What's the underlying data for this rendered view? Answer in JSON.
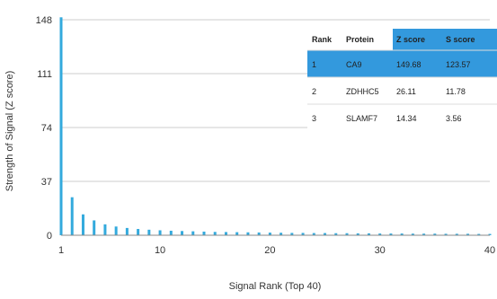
{
  "chart_data": {
    "type": "bar",
    "ylabel": "Strength of Signal (Z score)",
    "xlabel": "Signal Rank (Top 40)",
    "ylim": [
      0,
      148
    ],
    "xlim": [
      1,
      40
    ],
    "y_ticks": [
      "0",
      "37",
      "74",
      "111",
      "148"
    ],
    "x_ticks": [
      "1",
      "10",
      "20",
      "30",
      "40"
    ],
    "grid": "horizontal",
    "colors": {
      "bar": "#33aadd",
      "table_highlight": "#3399dd"
    },
    "x": [
      1,
      2,
      3,
      4,
      5,
      6,
      7,
      8,
      9,
      10,
      11,
      12,
      13,
      14,
      15,
      16,
      17,
      18,
      19,
      20,
      21,
      22,
      23,
      24,
      25,
      26,
      27,
      28,
      29,
      30,
      31,
      32,
      33,
      34,
      35,
      36,
      37,
      38,
      39,
      40
    ],
    "values": [
      149.68,
      26.11,
      14.34,
      10.2,
      7.5,
      6.0,
      5.0,
      4.3,
      3.8,
      3.4,
      3.1,
      2.9,
      2.7,
      2.5,
      2.3,
      2.2,
      2.1,
      2.0,
      1.9,
      1.8,
      1.7,
      1.6,
      1.6,
      1.5,
      1.5,
      1.4,
      1.4,
      1.3,
      1.3,
      1.2,
      1.2,
      1.2,
      1.1,
      1.1,
      1.1,
      1.0,
      1.0,
      1.0,
      0.9,
      0.9
    ],
    "table": {
      "headers": [
        "Rank",
        "Protein",
        "Z score",
        "S score"
      ],
      "rows": [
        [
          "1",
          "CA9",
          "149.68",
          "123.57"
        ],
        [
          "2",
          "ZDHHC5",
          "26.11",
          "11.78"
        ],
        [
          "3",
          "SLAMF7",
          "14.34",
          "3.56"
        ]
      ]
    }
  }
}
